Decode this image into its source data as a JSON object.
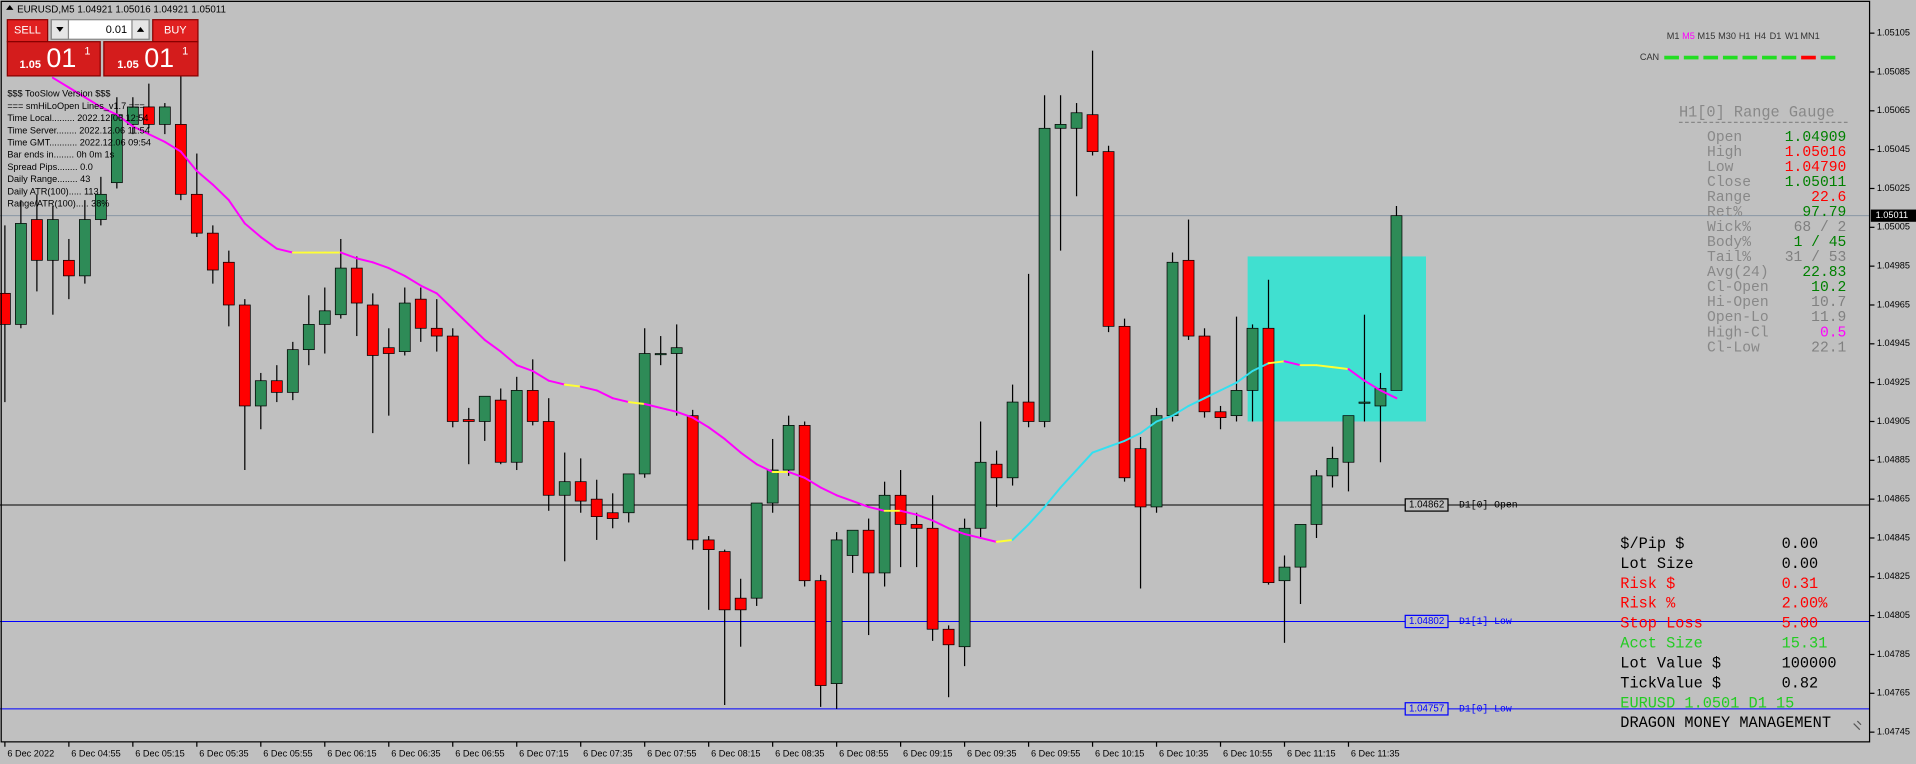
{
  "chart_data": {
    "type": "candlestick",
    "header": "EURUSD,M5  1.04921 1.05016 1.04921 1.05011",
    "categories": [
      "6 Dec 2022",
      null,
      null,
      null,
      "6 Dec 04:55",
      null,
      null,
      null,
      "6 Dec 05:15",
      null,
      null,
      null,
      "6 Dec 05:35",
      null,
      null,
      null,
      "6 Dec 05:55",
      null,
      null,
      null,
      "6 Dec 06:15",
      null,
      null,
      null,
      "6 Dec 06:35",
      null,
      null,
      null,
      "6 Dec 06:55",
      null,
      null,
      null,
      "6 Dec 07:15",
      null,
      null,
      null,
      "6 Dec 07:35",
      null,
      null,
      null,
      "6 Dec 07:55",
      null,
      null,
      null,
      "6 Dec 08:15",
      null,
      null,
      null,
      "6 Dec 08:35",
      null,
      null,
      null,
      "6 Dec 08:55",
      null,
      null,
      null,
      "6 Dec 09:15",
      null,
      null,
      null,
      "6 Dec 09:35",
      null,
      null,
      null,
      "6 Dec 09:55",
      null,
      null,
      null,
      "6 Dec 10:15",
      null,
      null,
      null,
      "6 Dec 10:35",
      null,
      null,
      null,
      "6 Dec 10:55",
      null,
      null,
      null,
      "6 Dec 11:15",
      null,
      null,
      null,
      "6 Dec 11:35",
      null,
      null,
      null
    ],
    "open": [
      1.04971,
      1.04955,
      1.05009,
      1.04988,
      1.04988,
      1.0498,
      1.05009,
      1.05028,
      1.05058,
      1.05067,
      1.05058,
      1.05058,
      1.05022,
      1.05002,
      1.04987,
      1.04965,
      1.04913,
      1.04926,
      1.0492,
      1.04942,
      1.04955,
      1.0496,
      1.04984,
      1.04965,
      1.04943,
      1.04941,
      1.04968,
      1.04953,
      1.04949,
      1.04906,
      1.04905,
      1.04916,
      1.04884,
      1.04921,
      1.04905,
      1.04867,
      1.04874,
      1.04865,
      1.04858,
      1.04858,
      1.04878,
      1.0494,
      1.0494,
      1.04908,
      1.04844,
      1.04838,
      1.04814,
      1.04814,
      1.04863,
      1.0488,
      1.04903,
      1.04823,
      1.0477,
      1.04836,
      1.04849,
      1.04827,
      1.04867,
      1.04852,
      1.0485,
      1.04798,
      1.04789,
      1.0485,
      1.04883,
      1.04876,
      1.04915,
      1.04905,
      1.05056,
      1.05056,
      1.05063,
      1.05044,
      1.04954,
      1.04891,
      1.04861,
      1.04908,
      1.04988,
      1.04949,
      1.0491,
      1.04908,
      1.04921,
      1.04953,
      1.04823,
      1.0483,
      1.04852,
      1.04877,
      1.04884,
      1.04915,
      1.04913,
      1.04921
    ],
    "high": [
      1.05006,
      1.05019,
      1.05022,
      1.05016,
      1.04999,
      1.05019,
      1.05031,
      1.05072,
      1.05072,
      1.05079,
      1.05069,
      1.05083,
      1.05043,
      1.05006,
      1.04993,
      1.04968,
      1.0493,
      1.04934,
      1.04946,
      1.0497,
      1.04974,
      1.04999,
      1.0499,
      1.04971,
      1.04953,
      1.04974,
      1.04974,
      1.04968,
      1.04953,
      1.04912,
      1.04918,
      1.04922,
      1.04928,
      1.04937,
      1.04917,
      1.04889,
      1.04886,
      1.04875,
      1.04868,
      1.04878,
      1.04953,
      1.04949,
      1.04955,
      1.04911,
      1.04846,
      1.04839,
      1.04824,
      1.04863,
      1.04896,
      1.04908,
      1.04905,
      1.04826,
      1.04848,
      1.04849,
      1.04855,
      1.04874,
      1.0488,
      1.04858,
      1.04867,
      1.048,
      1.04855,
      1.04905,
      1.0489,
      1.04924,
      1.04981,
      1.05073,
      1.05073,
      1.05069,
      1.05096,
      1.05047,
      1.04958,
      1.04897,
      1.04912,
      1.04992,
      1.05009,
      1.04953,
      1.04913,
      1.04959,
      1.04955,
      1.04978,
      1.04836,
      1.04852,
      1.0488,
      1.04892,
      1.04908,
      1.0496,
      1.0493,
      1.05016
    ],
    "low": [
      1.04915,
      1.04953,
      1.04972,
      1.0496,
      1.04968,
      1.04976,
      1.05006,
      1.05025,
      1.05053,
      1.05056,
      1.05053,
      1.05019,
      1.05,
      1.04976,
      1.04954,
      1.0488,
      1.04901,
      1.04915,
      1.04916,
      1.04934,
      1.0494,
      1.04958,
      1.04949,
      1.04899,
      1.04908,
      1.04939,
      1.04946,
      1.04941,
      1.04902,
      1.04883,
      1.04895,
      1.04883,
      1.0488,
      1.04903,
      1.04859,
      1.04833,
      1.04858,
      1.04844,
      1.0485,
      1.04853,
      1.04876,
      1.04934,
      1.04908,
      1.04839,
      1.04808,
      1.04759,
      1.04789,
      1.0481,
      1.04858,
      1.04877,
      1.0482,
      1.04758,
      1.04757,
      1.04827,
      1.04795,
      1.0482,
      1.0483,
      1.0483,
      1.04792,
      1.04763,
      1.04779,
      1.04845,
      1.04861,
      1.04872,
      1.04902,
      1.04902,
      1.04993,
      1.05021,
      1.05042,
      1.04951,
      1.04874,
      1.04819,
      1.04858,
      1.04905,
      1.04947,
      1.04907,
      1.04901,
      1.04905,
      1.04905,
      1.04821,
      1.04791,
      1.04811,
      1.04845,
      1.04871,
      1.04869,
      1.04905,
      1.04884,
      1.04921
    ],
    "close": [
      1.04955,
      1.05007,
      1.04988,
      1.05009,
      1.0498,
      1.05009,
      1.05022,
      1.05063,
      1.05067,
      1.05058,
      1.05067,
      1.05022,
      1.05002,
      1.04983,
      1.04965,
      1.04913,
      1.04926,
      1.0492,
      1.04942,
      1.04955,
      1.04962,
      1.04984,
      1.04966,
      1.04939,
      1.0494,
      1.04966,
      1.04953,
      1.04949,
      1.04905,
      1.04905,
      1.04918,
      1.04884,
      1.04921,
      1.04905,
      1.04867,
      1.04874,
      1.04864,
      1.04856,
      1.04855,
      1.04878,
      1.0494,
      1.0494,
      1.04943,
      1.04844,
      1.04839,
      1.04808,
      1.04808,
      1.04863,
      1.0488,
      1.04903,
      1.04823,
      1.04769,
      1.04844,
      1.04849,
      1.04827,
      1.04867,
      1.04852,
      1.0485,
      1.04798,
      1.0479,
      1.0485,
      1.04884,
      1.04876,
      1.04915,
      1.04905,
      1.05056,
      1.05058,
      1.05064,
      1.05044,
      1.04954,
      1.04876,
      1.04861,
      1.04908,
      1.04987,
      1.04949,
      1.0491,
      1.04907,
      1.04921,
      1.04953,
      1.04822,
      1.0483,
      1.04852,
      1.04877,
      1.04886,
      1.04908,
      1.04915,
      1.04922,
      1.05011
    ],
    "up_color": "#2e8b57",
    "down_color": "#ff0000",
    "ma": {
      "values": [
        null,
        null,
        null,
        1.05082,
        1.05077,
        1.05072,
        1.05067,
        1.05063,
        1.05057,
        1.05053,
        1.05049,
        1.05044,
        1.05034,
        1.05027,
        1.05019,
        1.05007,
        1.05,
        1.04994,
        1.04992,
        1.04992,
        1.04992,
        1.04992,
        1.04989,
        1.04987,
        1.04984,
        1.0498,
        1.04975,
        1.04971,
        1.04963,
        1.04955,
        1.04947,
        1.04941,
        1.04934,
        1.04931,
        1.04926,
        1.04924,
        1.04923,
        1.04921,
        1.04917,
        1.04915,
        1.04914,
        1.04912,
        1.0491,
        1.04907,
        1.04902,
        1.04896,
        1.04889,
        1.04883,
        1.04879,
        1.04879,
        1.04876,
        1.04871,
        1.04867,
        1.04864,
        1.04861,
        1.04859,
        1.04859,
        1.04857,
        1.04854,
        1.0485,
        1.04847,
        1.04845,
        1.04843,
        1.04844,
        1.04852,
        1.04861,
        1.04871,
        1.0488,
        1.04889,
        1.04892,
        1.04895,
        1.04899,
        1.04905,
        1.04908,
        1.04913,
        1.04917,
        1.04921,
        1.04925,
        1.04931,
        1.04935,
        1.04936,
        1.04934,
        1.04934,
        1.04933,
        1.04932,
        1.04926,
        1.04921,
        1.04917
      ],
      "colors": {
        "rising": "#33e0f0",
        "falling": "#ff00ff",
        "flat": "#ffff33"
      }
    },
    "range_box": {
      "top": 1.0499,
      "bottom": 1.04905,
      "color": "#40e0d0"
    },
    "hlines": [
      {
        "value": 1.04862,
        "label": "D1[0] Open",
        "color": "#000000"
      },
      {
        "value": 1.04802,
        "label": "D1[1] Low",
        "color": "#0000ff"
      },
      {
        "value": 1.04757,
        "label": "D1[0] Low",
        "color": "#0000ff"
      }
    ],
    "last_price": 1.05011,
    "ylim": [
      1.0474,
      1.05122
    ],
    "yticks": [
      1.05105,
      1.05085,
      1.05065,
      1.05045,
      1.05025,
      1.05005,
      1.04985,
      1.04965,
      1.04945,
      1.04925,
      1.04905,
      1.04885,
      1.04865,
      1.04845,
      1.04825,
      1.04805,
      1.04785,
      1.04765,
      1.04745
    ]
  },
  "trade_panel": {
    "sell": "SELL",
    "buy": "BUY",
    "lot": "0.01",
    "bid": {
      "big": "1.05",
      "pips": "01",
      "point": "1"
    },
    "ask": {
      "big": "1.05",
      "pips": "01",
      "point": "1"
    }
  },
  "info_lines": [
    "$$$ TooSlow Version $$$",
    "=== smHiLoOpen Lines_v1.7 ===",
    "Time Local......... 2022.12.06 12:54",
    "Time Server........ 2022.12.06 11:54",
    "Time GMT........... 2022.12.06 09:54",
    "Bar ends in........ 0h 0m 1s",
    "Spread Pips........ 0.0",
    "Daily Range........ 43",
    "Daily ATR(100)..... 113",
    "Range/ATR(100)..... 38%"
  ],
  "timeframes": {
    "labels": [
      "M1",
      "M5",
      "M15",
      "M30",
      "H1",
      "H4",
      "D1",
      "W1",
      "MN1"
    ],
    "colors": [
      "#333333",
      "#ff00ff",
      "#333333",
      "#333333",
      "#333333",
      "#333333",
      "#333333",
      "#333333",
      "#333333"
    ],
    "can_label": "CAN",
    "dashes": [
      "#22dd22",
      "#22dd22",
      "#22dd22",
      "#22dd22",
      "#22dd22",
      "#22dd22",
      "#22dd22",
      "#ff0000",
      "#22dd22"
    ]
  },
  "gauge": {
    "title": "H1[0] Range Gauge",
    "rows": [
      {
        "label": "Open",
        "value": "1.04909",
        "color": "#008000"
      },
      {
        "label": "High",
        "value": "1.05016",
        "color": "#ff0000"
      },
      {
        "label": "Low",
        "value": "1.04790",
        "color": "#ff0000"
      },
      {
        "label": "Close",
        "value": "1.05011",
        "color": "#008000"
      },
      {
        "label": "Range",
        "value": "22.6",
        "color": "#ff0000"
      },
      {
        "label": "Ret%",
        "value": "97.79",
        "color": "#008000"
      },
      {
        "label": "Wick%",
        "value": "68 / 2",
        "color": "#808080"
      },
      {
        "label": "Body%",
        "value": "1 / 45",
        "color": "#008000"
      },
      {
        "label": "Tail%",
        "value": "31 / 53",
        "color": "#808080"
      },
      {
        "label": "Avg(24)",
        "value": "22.83",
        "color": "#008000"
      },
      {
        "label": "Cl-Open",
        "value": "10.2",
        "color": "#008000"
      },
      {
        "label": "Hi-Open",
        "value": "10.7",
        "color": "#808080"
      },
      {
        "label": "Open-Lo",
        "value": "11.9",
        "color": "#808080"
      },
      {
        "label": "High-Cl",
        "value": "0.5",
        "color": "#ff00ff"
      },
      {
        "label": "Cl-Low",
        "value": "22.1",
        "color": "#808080"
      }
    ]
  },
  "money": {
    "rows": [
      {
        "label": "$/Pip $",
        "value": "0.00",
        "color": "#000000"
      },
      {
        "label": "Lot Size",
        "value": "0.00",
        "color": "#000000"
      },
      {
        "label": "Risk $",
        "value": "0.31",
        "color": "#ff0000"
      },
      {
        "label": "Risk %",
        "value": "2.00%",
        "color": "#ff0000"
      },
      {
        "label": "Stop Loss",
        "value": "5.00",
        "color": "#ff0000"
      },
      {
        "label": "Acct Size",
        "value": "15.31",
        "color": "#22cc22"
      },
      {
        "label": "Lot Value $",
        "value": "100000",
        "color": "#000000"
      },
      {
        "label": "TickValue $",
        "value": "0.82",
        "color": "#000000"
      }
    ],
    "summary": "EURUSD 1.0501 D1 15",
    "summary_color": "#22cc22",
    "footer": "DRAGON MONEY MANAGEMENT"
  }
}
